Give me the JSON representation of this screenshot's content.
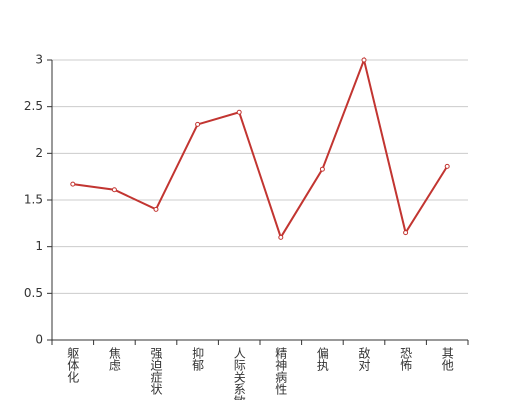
{
  "chart_data": {
    "type": "line",
    "categories": [
      "躯体化",
      "焦虑",
      "强迫症状",
      "抑郁",
      "人际关系敏感",
      "精神病性",
      "偏执",
      "敌对",
      "恐怖",
      "其他"
    ],
    "values": [
      1.67,
      1.61,
      1.4,
      2.31,
      2.44,
      1.1,
      1.83,
      3.0,
      1.15,
      1.86
    ],
    "color": "#c23531",
    "ylim": [
      0,
      3
    ],
    "yticks": [
      0,
      0.5,
      1,
      1.5,
      2,
      2.5,
      3
    ],
    "grid": true
  }
}
